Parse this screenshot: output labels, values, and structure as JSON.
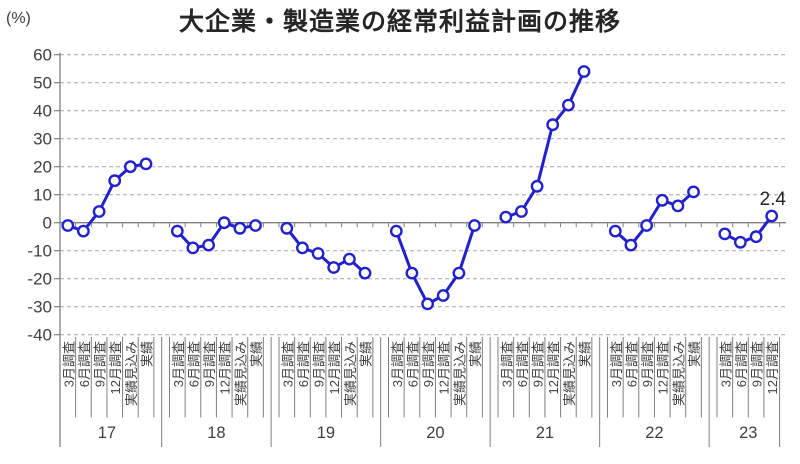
{
  "header": {
    "unit_label": "(%)",
    "title": "大企業・製造業の経常利益計画の推移"
  },
  "chart_data": {
    "type": "line",
    "title": "大企業・製造業の経常利益計画の推移",
    "ylabel": "(%)",
    "ylim": [
      -40,
      60
    ],
    "yticks": [
      60,
      50,
      40,
      30,
      20,
      10,
      0,
      -10,
      -20,
      -30,
      -40
    ],
    "grid": "dashed-horizontal",
    "legend_position": "none",
    "line_color": "#2222cc",
    "marker": "circle-open",
    "axis_color": "#808080",
    "grid_color": "#a6a6a6",
    "text_color": "#404040",
    "survey_labels": [
      "3月調査",
      "6月調査",
      "9月調査",
      "12月調査",
      "実績見込み",
      "実績"
    ],
    "groups": [
      {
        "year": "17",
        "labels": [
          "3月調査",
          "6月調査",
          "9月調査",
          "12月調査",
          "実績見込み",
          "実績"
        ],
        "values": [
          -1,
          -3,
          4,
          15,
          20,
          21
        ]
      },
      {
        "year": "18",
        "labels": [
          "3月調査",
          "6月調査",
          "9月調査",
          "12月調査",
          "実績見込み",
          "実績"
        ],
        "values": [
          -3,
          -9,
          -8,
          0,
          -2,
          -1
        ]
      },
      {
        "year": "19",
        "labels": [
          "3月調査",
          "6月調査",
          "9月調査",
          "12月調査",
          "実績見込み",
          "実績"
        ],
        "values": [
          -2,
          -9,
          -11,
          -16,
          -13,
          -18
        ]
      },
      {
        "year": "20",
        "labels": [
          "3月調査",
          "6月調査",
          "9月調査",
          "12月調査",
          "実績見込み",
          "実績"
        ],
        "values": [
          -3,
          -18,
          -29,
          -26,
          -18,
          -1
        ]
      },
      {
        "year": "21",
        "labels": [
          "3月調査",
          "6月調査",
          "9月調査",
          "12月調査",
          "実績見込み",
          "実績"
        ],
        "values": [
          2,
          4,
          13,
          35,
          42,
          54
        ]
      },
      {
        "year": "22",
        "labels": [
          "3月調査",
          "6月調査",
          "9月調査",
          "12月調査",
          "実績見込み",
          "実績"
        ],
        "values": [
          -3,
          -8,
          -1,
          8,
          6,
          11
        ]
      },
      {
        "year": "23",
        "labels": [
          "3月調査",
          "6月調査",
          "9月調査",
          "12月調査"
        ],
        "values": [
          -4,
          -7,
          -5,
          2.4
        ]
      }
    ],
    "annotation": {
      "text": "2.4",
      "target_year": "23",
      "target_label": "12月調査"
    }
  }
}
